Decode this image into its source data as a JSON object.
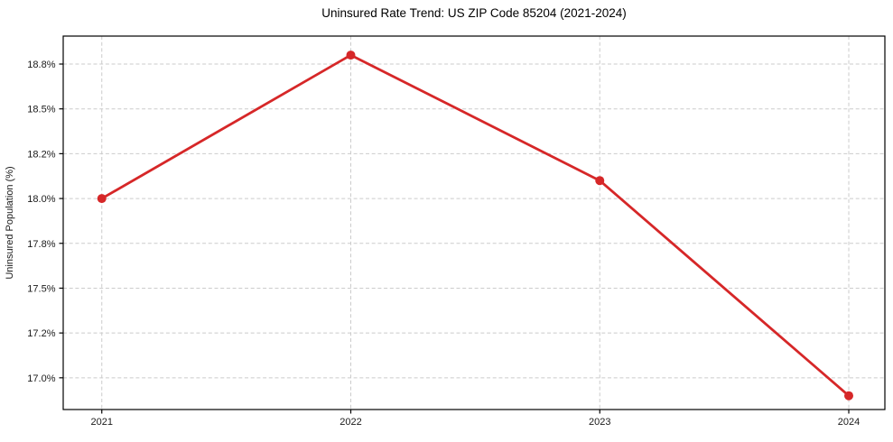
{
  "figure": {
    "background_color": "#ffffff"
  },
  "chart_data": {
    "type": "line",
    "title": "Uninsured Rate Trend: US ZIP Code 85204 (2021-2024)",
    "xlabel": "",
    "ylabel": "Uninsured Population (%)",
    "x": [
      2021,
      2022,
      2023,
      2024
    ],
    "series": [
      {
        "name": "Uninsured rate",
        "values": [
          18.0,
          18.8,
          18.1,
          16.9
        ]
      }
    ],
    "xlim": [
      2020.845,
      2024.145
    ],
    "ylim": [
      16.823,
      18.906
    ],
    "xticks": [
      {
        "value": 2021,
        "label": "2021"
      },
      {
        "value": 2022,
        "label": "2022"
      },
      {
        "value": 2023,
        "label": "2023"
      },
      {
        "value": 2024,
        "label": "2024"
      }
    ],
    "yticks": [
      {
        "value": 17.0,
        "label": "17.0%"
      },
      {
        "value": 17.25,
        "label": "17.2%"
      },
      {
        "value": 17.5,
        "label": "17.5%"
      },
      {
        "value": 17.75,
        "label": "17.8%"
      },
      {
        "value": 18.0,
        "label": "18.0%"
      },
      {
        "value": 18.25,
        "label": "18.2%"
      },
      {
        "value": 18.5,
        "label": "18.5%"
      },
      {
        "value": 18.75,
        "label": "18.8%"
      }
    ],
    "grid": true,
    "grid_linestyle": "dashed",
    "legend": false,
    "style": {
      "line_color": "#d62728",
      "marker": "circle",
      "marker_radius": 5,
      "line_width": 2.8,
      "grid_color": "#cbcbcb",
      "spine_color": "#000000",
      "tick_color": "#000000",
      "text_color": "#1a1a1a"
    }
  }
}
